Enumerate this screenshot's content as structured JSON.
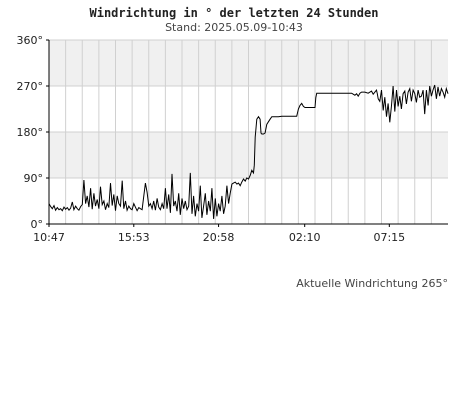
{
  "header": {
    "title": "Windrichtung in ° der letzten 24 Stunden",
    "subtitle": "Stand: 2025.05.09-10:43"
  },
  "footer": {
    "current_direction": "Aktuelle Windrichtung 265°"
  },
  "chart_data": {
    "type": "line",
    "title": "Windrichtung in ° der letzten 24 Stunden",
    "subtitle": "Stand: 2025.05.09-10:43",
    "xlabel": "",
    "ylabel": "",
    "ylim": [
      0,
      360
    ],
    "xlim": [
      0,
      24
    ],
    "y_ticks": [
      0,
      90,
      180,
      270,
      360
    ],
    "y_tick_labels": [
      "0°",
      "90°",
      "180°",
      "270°",
      "360°"
    ],
    "x_ticks": [
      0,
      5.1,
      10.2,
      15.38,
      20.47
    ],
    "x_tick_labels": [
      "10:47",
      "15:53",
      "20:58",
      "02:10",
      "07:15"
    ],
    "grid": true,
    "band_colors": [
      "#f0f0f0",
      "#ffffff"
    ],
    "line_color": "#000000",
    "series": [
      {
        "values": [
          [
            0.0,
            40
          ],
          [
            0.1,
            34
          ],
          [
            0.2,
            30
          ],
          [
            0.3,
            36
          ],
          [
            0.4,
            27
          ],
          [
            0.5,
            32
          ],
          [
            0.6,
            28
          ],
          [
            0.7,
            30
          ],
          [
            0.8,
            26
          ],
          [
            0.9,
            33
          ],
          [
            1.0,
            29
          ],
          [
            1.1,
            32
          ],
          [
            1.2,
            27
          ],
          [
            1.3,
            31
          ],
          [
            1.4,
            43
          ],
          [
            1.5,
            28
          ],
          [
            1.6,
            35
          ],
          [
            1.7,
            30
          ],
          [
            1.8,
            27
          ],
          [
            1.9,
            34
          ],
          [
            2.0,
            38
          ],
          [
            2.1,
            86
          ],
          [
            2.2,
            40
          ],
          [
            2.3,
            55
          ],
          [
            2.4,
            33
          ],
          [
            2.5,
            70
          ],
          [
            2.6,
            29
          ],
          [
            2.7,
            60
          ],
          [
            2.8,
            35
          ],
          [
            2.9,
            48
          ],
          [
            3.0,
            30
          ],
          [
            3.1,
            73
          ],
          [
            3.2,
            38
          ],
          [
            3.3,
            45
          ],
          [
            3.4,
            28
          ],
          [
            3.5,
            40
          ],
          [
            3.6,
            32
          ],
          [
            3.7,
            80
          ],
          [
            3.8,
            36
          ],
          [
            3.9,
            58
          ],
          [
            4.0,
            26
          ],
          [
            4.1,
            55
          ],
          [
            4.2,
            40
          ],
          [
            4.3,
            35
          ],
          [
            4.4,
            85
          ],
          [
            4.5,
            30
          ],
          [
            4.6,
            45
          ],
          [
            4.7,
            27
          ],
          [
            4.8,
            35
          ],
          [
            4.9,
            30
          ],
          [
            5.0,
            28
          ],
          [
            5.1,
            40
          ],
          [
            5.2,
            33
          ],
          [
            5.3,
            26
          ],
          [
            5.4,
            32
          ],
          [
            5.5,
            30
          ],
          [
            5.6,
            28
          ],
          [
            5.7,
            55
          ],
          [
            5.8,
            80
          ],
          [
            5.9,
            62
          ],
          [
            6.0,
            35
          ],
          [
            6.1,
            40
          ],
          [
            6.2,
            30
          ],
          [
            6.3,
            45
          ],
          [
            6.4,
            27
          ],
          [
            6.5,
            50
          ],
          [
            6.6,
            33
          ],
          [
            6.7,
            28
          ],
          [
            6.8,
            40
          ],
          [
            6.9,
            30
          ],
          [
            7.0,
            70
          ],
          [
            7.1,
            30
          ],
          [
            7.2,
            58
          ],
          [
            7.3,
            22
          ],
          [
            7.4,
            98
          ],
          [
            7.5,
            35
          ],
          [
            7.6,
            45
          ],
          [
            7.7,
            25
          ],
          [
            7.8,
            60
          ],
          [
            7.9,
            18
          ],
          [
            8.0,
            50
          ],
          [
            8.1,
            30
          ],
          [
            8.2,
            45
          ],
          [
            8.3,
            28
          ],
          [
            8.4,
            35
          ],
          [
            8.5,
            100
          ],
          [
            8.6,
            20
          ],
          [
            8.7,
            55
          ],
          [
            8.8,
            15
          ],
          [
            8.9,
            40
          ],
          [
            9.0,
            25
          ],
          [
            9.1,
            75
          ],
          [
            9.2,
            12
          ],
          [
            9.3,
            35
          ],
          [
            9.4,
            60
          ],
          [
            9.5,
            18
          ],
          [
            9.6,
            45
          ],
          [
            9.7,
            25
          ],
          [
            9.8,
            70
          ],
          [
            9.9,
            10
          ],
          [
            10.0,
            50
          ],
          [
            10.1,
            15
          ],
          [
            10.2,
            40
          ],
          [
            10.3,
            25
          ],
          [
            10.4,
            55
          ],
          [
            10.5,
            20
          ],
          [
            10.6,
            35
          ],
          [
            10.7,
            75
          ],
          [
            10.8,
            40
          ],
          [
            10.9,
            60
          ],
          [
            11.0,
            78
          ],
          [
            11.1,
            80
          ],
          [
            11.2,
            82
          ],
          [
            11.3,
            78
          ],
          [
            11.4,
            80
          ],
          [
            11.5,
            75
          ],
          [
            11.6,
            82
          ],
          [
            11.7,
            88
          ],
          [
            11.8,
            84
          ],
          [
            11.9,
            90
          ],
          [
            12.0,
            88
          ],
          [
            12.1,
            95
          ],
          [
            12.2,
            105
          ],
          [
            12.3,
            100
          ],
          [
            12.35,
            115
          ],
          [
            12.4,
            170
          ],
          [
            12.5,
            205
          ],
          [
            12.6,
            210
          ],
          [
            12.7,
            205
          ],
          [
            12.75,
            178
          ],
          [
            12.8,
            176
          ],
          [
            12.9,
            176
          ],
          [
            13.0,
            178
          ],
          [
            13.1,
            195
          ],
          [
            13.2,
            200
          ],
          [
            13.3,
            205
          ],
          [
            13.4,
            210
          ],
          [
            13.5,
            210
          ],
          [
            13.6,
            210
          ],
          [
            13.8,
            210
          ],
          [
            14.0,
            211
          ],
          [
            14.2,
            211
          ],
          [
            14.4,
            211
          ],
          [
            14.6,
            211
          ],
          [
            14.8,
            211
          ],
          [
            14.9,
            211
          ],
          [
            15.0,
            225
          ],
          [
            15.1,
            232
          ],
          [
            15.2,
            236
          ],
          [
            15.3,
            230
          ],
          [
            15.4,
            228
          ],
          [
            15.6,
            228
          ],
          [
            15.8,
            228
          ],
          [
            16.0,
            228
          ],
          [
            16.05,
            247
          ],
          [
            16.1,
            256
          ],
          [
            16.3,
            256
          ],
          [
            16.6,
            256
          ],
          [
            17.0,
            256
          ],
          [
            17.4,
            256
          ],
          [
            17.8,
            256
          ],
          [
            18.2,
            256
          ],
          [
            18.4,
            252
          ],
          [
            18.5,
            255
          ],
          [
            18.6,
            250
          ],
          [
            18.7,
            256
          ],
          [
            18.8,
            258
          ],
          [
            19.0,
            258
          ],
          [
            19.2,
            256
          ],
          [
            19.4,
            260
          ],
          [
            19.5,
            254
          ],
          [
            19.6,
            258
          ],
          [
            19.7,
            262
          ],
          [
            19.75,
            255
          ],
          [
            19.8,
            245
          ],
          [
            19.9,
            240
          ],
          [
            20.0,
            262
          ],
          [
            20.1,
            222
          ],
          [
            20.2,
            248
          ],
          [
            20.3,
            210
          ],
          [
            20.4,
            236
          ],
          [
            20.5,
            199
          ],
          [
            20.6,
            232
          ],
          [
            20.7,
            270
          ],
          [
            20.8,
            220
          ],
          [
            20.9,
            262
          ],
          [
            21.0,
            230
          ],
          [
            21.1,
            250
          ],
          [
            21.2,
            225
          ],
          [
            21.3,
            255
          ],
          [
            21.4,
            260
          ],
          [
            21.5,
            235
          ],
          [
            21.6,
            258
          ],
          [
            21.7,
            265
          ],
          [
            21.8,
            240
          ],
          [
            21.9,
            262
          ],
          [
            22.0,
            255
          ],
          [
            22.1,
            238
          ],
          [
            22.2,
            262
          ],
          [
            22.3,
            248
          ],
          [
            22.4,
            250
          ],
          [
            22.5,
            262
          ],
          [
            22.6,
            215
          ],
          [
            22.7,
            262
          ],
          [
            22.8,
            232
          ],
          [
            22.9,
            270
          ],
          [
            23.0,
            250
          ],
          [
            23.1,
            262
          ],
          [
            23.2,
            272
          ],
          [
            23.3,
            245
          ],
          [
            23.4,
            268
          ],
          [
            23.5,
            250
          ],
          [
            23.6,
            265
          ],
          [
            23.7,
            258
          ],
          [
            23.8,
            248
          ],
          [
            23.9,
            265
          ],
          [
            24.0,
            255
          ]
        ]
      }
    ]
  }
}
